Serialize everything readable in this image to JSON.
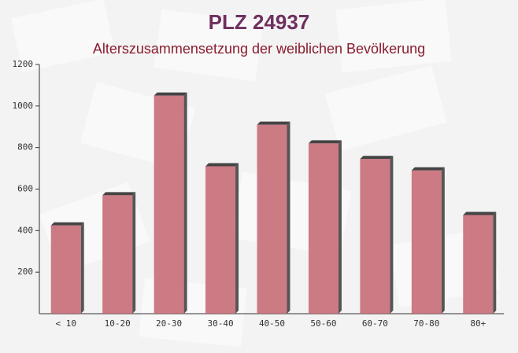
{
  "chart_data": {
    "type": "bar",
    "title": "PLZ 24937",
    "subtitle": "Alterszusammensetzung der weiblichen Bevölkerung",
    "categories": [
      "< 10",
      "10-20",
      "20-30",
      "30-40",
      "40-50",
      "50-60",
      "60-70",
      "70-80",
      "80+"
    ],
    "values": [
      425,
      570,
      1050,
      710,
      910,
      820,
      745,
      690,
      475
    ],
    "color": "#c4646e",
    "ylim": [
      0,
      1200
    ],
    "yticks": [
      200,
      400,
      600,
      800,
      1000,
      1200
    ]
  }
}
